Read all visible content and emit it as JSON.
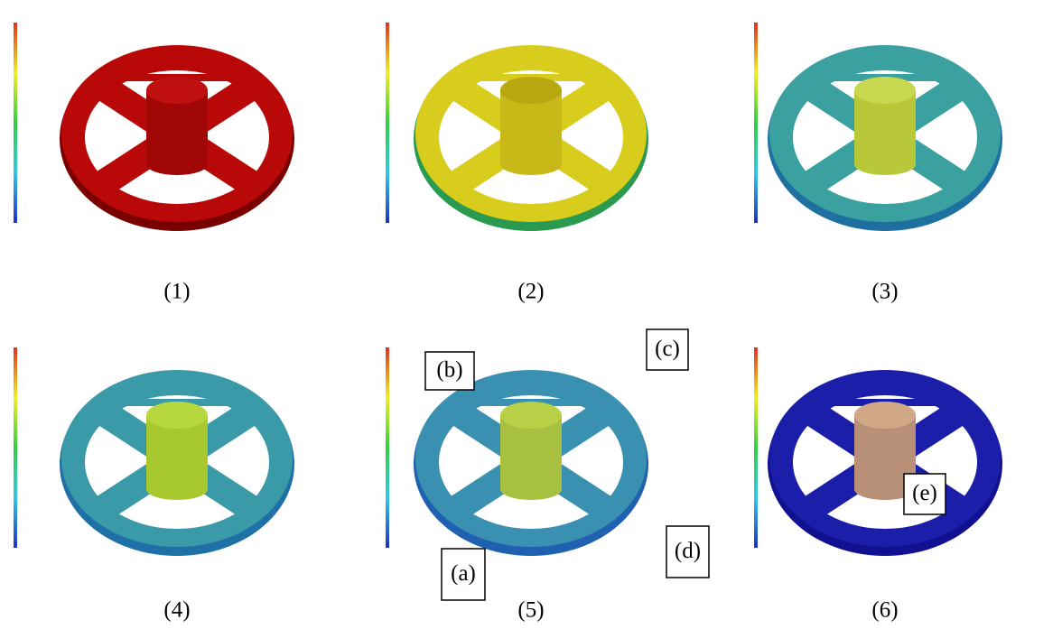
{
  "panels": [
    {
      "caption": "(1)"
    },
    {
      "caption": "(2)"
    },
    {
      "caption": "(3)"
    },
    {
      "caption": "(4)"
    },
    {
      "caption": "(5)"
    },
    {
      "caption": "(6)"
    }
  ],
  "annotations": [
    {
      "label": "(b)"
    },
    {
      "label": "(c)"
    },
    {
      "label": "(a)"
    },
    {
      "label": "(d)"
    },
    {
      "label": "(e)"
    }
  ]
}
